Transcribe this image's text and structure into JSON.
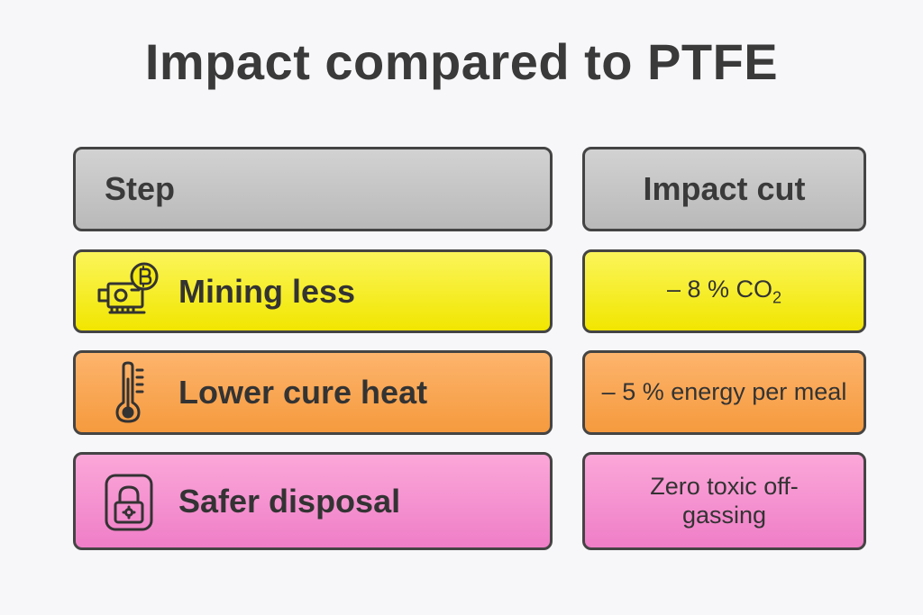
{
  "title": "Impact compared to PTFE",
  "header": {
    "step": "Step",
    "impact": "Impact cut"
  },
  "rows": [
    {
      "icon": "bitcoin-mining-icon",
      "color": "#f5ea10",
      "step": "Mining less",
      "impact_prefix": "– 8 % CO",
      "impact_sub": "2"
    },
    {
      "icon": "thermometer-icon",
      "color": "#f9a650",
      "step": "Lower cure heat",
      "impact": "– 5 % energy per meal"
    },
    {
      "icon": "lock-icon",
      "color": "#f492cf",
      "step": "Safer disposal",
      "impact": "Zero toxic off-gassing"
    }
  ]
}
